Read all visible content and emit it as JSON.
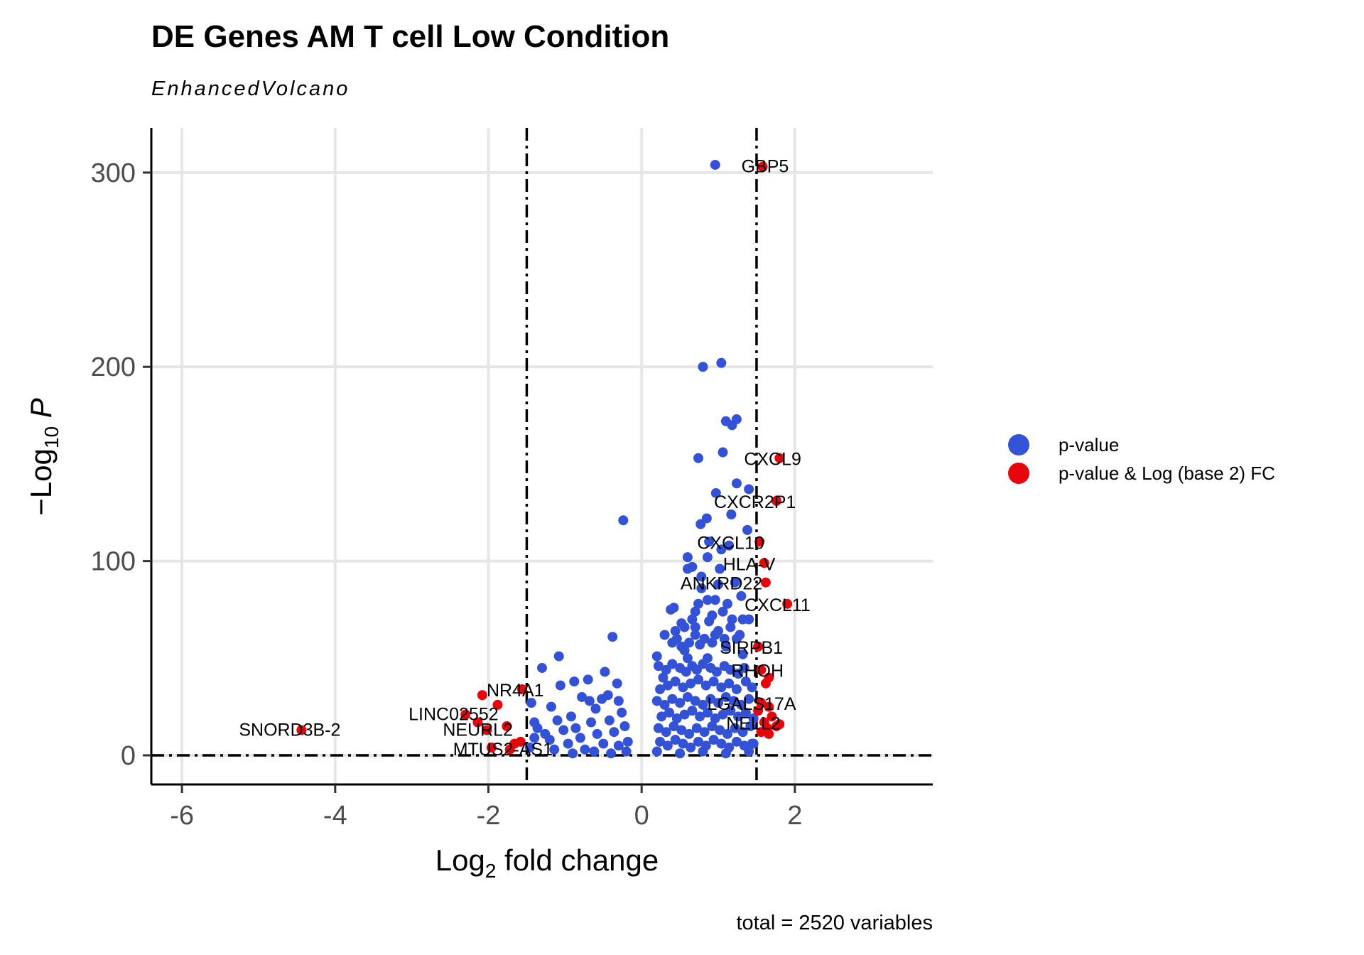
{
  "title": "DE Genes AM T cell Low Condition",
  "subtitle": "EnhancedVolcano",
  "caption": "total = 2520 variables",
  "colors": {
    "pvalue": "#3452d6",
    "pvalue_fc": "#e8060c",
    "grid": "#e6e6e6"
  },
  "chart_data": {
    "type": "scatter",
    "title": "DE Genes AM T cell Low Condition",
    "subtitle": "EnhancedVolcano",
    "xlabel": {
      "main": "Log",
      "sub": "2",
      "rest": " fold change"
    },
    "ylabel": {
      "pre": "−Log",
      "sub": "10",
      "italic": " P"
    },
    "xlim": [
      -6.4,
      3.8
    ],
    "ylim": [
      -15,
      323
    ],
    "xticks": [
      -6,
      -4,
      -2,
      0,
      2
    ],
    "yticks": [
      0,
      100,
      200,
      300
    ],
    "grid": true,
    "fc_cutoff": [
      -1.5,
      1.5
    ],
    "p_cutoff_line": 0,
    "legend_position": "right",
    "legend": [
      {
        "name": "p-value",
        "color": "#3452d6"
      },
      {
        "name": "p-value & Log (base 2) FC",
        "color": "#e8060c"
      }
    ],
    "series": [
      {
        "name": "p-value",
        "color": "#3452d6",
        "points": [
          [
            0.96,
            304
          ],
          [
            1.04,
            202
          ],
          [
            0.8,
            200
          ],
          [
            1.1,
            172
          ],
          [
            1.24,
            173
          ],
          [
            1.18,
            170
          ],
          [
            0.74,
            153
          ],
          [
            1.06,
            156
          ],
          [
            1.24,
            140
          ],
          [
            1.4,
            137
          ],
          [
            0.97,
            135
          ],
          [
            1.17,
            124
          ],
          [
            0.85,
            122
          ],
          [
            0.77,
            119
          ],
          [
            1.38,
            116
          ],
          [
            -0.24,
            121
          ],
          [
            0.88,
            110
          ],
          [
            1.14,
            108
          ],
          [
            1.04,
            106
          ],
          [
            0.86,
            102
          ],
          [
            0.6,
            102
          ],
          [
            0.66,
            97
          ],
          [
            0.6,
            96
          ],
          [
            1.02,
            96
          ],
          [
            0.78,
            92
          ],
          [
            1.22,
            89
          ],
          [
            1.0,
            88
          ],
          [
            0.78,
            86
          ],
          [
            1.3,
            82
          ],
          [
            0.86,
            80
          ],
          [
            0.96,
            80
          ],
          [
            0.74,
            78
          ],
          [
            1.12,
            78
          ],
          [
            0.42,
            76
          ],
          [
            0.38,
            75
          ],
          [
            0.7,
            74
          ],
          [
            1.18,
            70
          ],
          [
            0.56,
            66
          ],
          [
            1.32,
            70
          ],
          [
            1.4,
            70
          ],
          [
            0.88,
            69
          ],
          [
            0.44,
            64
          ],
          [
            0.3,
            62
          ],
          [
            0.96,
            62
          ],
          [
            1.24,
            60
          ],
          [
            -0.38,
            61
          ],
          [
            0.76,
            57
          ],
          [
            1.1,
            56
          ],
          [
            0.4,
            58
          ],
          [
            0.56,
            54
          ],
          [
            0.2,
            51
          ],
          [
            0.6,
            50
          ],
          [
            0.86,
            50
          ],
          [
            1.32,
            52
          ],
          [
            -1.08,
            51
          ],
          [
            -1.3,
            45
          ],
          [
            -0.48,
            43
          ],
          [
            -0.7,
            39
          ],
          [
            -0.32,
            37
          ],
          [
            -0.88,
            38
          ],
          [
            -1.06,
            36
          ],
          [
            -1.44,
            27
          ],
          [
            -1.4,
            17
          ],
          [
            -1.36,
            14
          ],
          [
            -1.26,
            11
          ],
          [
            -1.4,
            9
          ],
          [
            -1.2,
            8
          ],
          [
            -1.46,
            4
          ],
          [
            -1.1,
            18
          ],
          [
            -1.18,
            25
          ],
          [
            -0.78,
            30
          ],
          [
            -0.68,
            28
          ],
          [
            -0.6,
            24
          ],
          [
            -0.52,
            29
          ],
          [
            -0.44,
            31
          ],
          [
            -0.3,
            28
          ],
          [
            -0.26,
            22
          ],
          [
            -0.22,
            15
          ],
          [
            -0.18,
            7
          ],
          [
            -0.2,
            2
          ],
          [
            -0.92,
            20
          ],
          [
            -0.86,
            14
          ],
          [
            -0.8,
            9
          ],
          [
            -0.74,
            3
          ],
          [
            -0.66,
            17
          ],
          [
            -0.58,
            11
          ],
          [
            -0.5,
            6
          ],
          [
            -0.42,
            18
          ],
          [
            -0.36,
            12
          ],
          [
            -0.3,
            5
          ],
          [
            -1.02,
            13
          ],
          [
            -0.96,
            6
          ],
          [
            -1.14,
            3
          ],
          [
            -0.62,
            2
          ],
          [
            -0.4,
            1
          ],
          [
            -0.9,
            1
          ],
          [
            0.22,
            46
          ],
          [
            0.28,
            40
          ],
          [
            0.32,
            44
          ],
          [
            0.4,
            47
          ],
          [
            0.5,
            45
          ],
          [
            0.58,
            43
          ],
          [
            0.66,
            46
          ],
          [
            0.72,
            44
          ],
          [
            0.8,
            47
          ],
          [
            0.9,
            45
          ],
          [
            0.98,
            43
          ],
          [
            1.08,
            46
          ],
          [
            1.16,
            44
          ],
          [
            1.26,
            42
          ],
          [
            1.34,
            45
          ],
          [
            0.24,
            34
          ],
          [
            0.34,
            36
          ],
          [
            0.44,
            38
          ],
          [
            0.54,
            35
          ],
          [
            0.64,
            37
          ],
          [
            0.74,
            39
          ],
          [
            0.84,
            36
          ],
          [
            0.94,
            38
          ],
          [
            1.04,
            35
          ],
          [
            1.14,
            37
          ],
          [
            1.24,
            34
          ],
          [
            1.36,
            38
          ],
          [
            1.44,
            35
          ],
          [
            0.2,
            28
          ],
          [
            0.3,
            26
          ],
          [
            0.4,
            29
          ],
          [
            0.5,
            27
          ],
          [
            0.6,
            30
          ],
          [
            0.7,
            28
          ],
          [
            0.8,
            26
          ],
          [
            0.9,
            29
          ],
          [
            1.0,
            27
          ],
          [
            1.1,
            30
          ],
          [
            1.2,
            28
          ],
          [
            1.3,
            26
          ],
          [
            1.4,
            29
          ],
          [
            0.26,
            20
          ],
          [
            0.36,
            22
          ],
          [
            0.46,
            19
          ],
          [
            0.56,
            21
          ],
          [
            0.66,
            23
          ],
          [
            0.76,
            20
          ],
          [
            0.86,
            22
          ],
          [
            0.96,
            19
          ],
          [
            1.06,
            21
          ],
          [
            1.16,
            23
          ],
          [
            1.26,
            20
          ],
          [
            1.36,
            22
          ],
          [
            1.46,
            19
          ],
          [
            0.22,
            14
          ],
          [
            0.32,
            12
          ],
          [
            0.42,
            15
          ],
          [
            0.52,
            13
          ],
          [
            0.62,
            11
          ],
          [
            0.72,
            14
          ],
          [
            0.82,
            12
          ],
          [
            0.92,
            15
          ],
          [
            1.02,
            13
          ],
          [
            1.12,
            11
          ],
          [
            1.22,
            14
          ],
          [
            1.32,
            12
          ],
          [
            1.42,
            15
          ],
          [
            0.24,
            7
          ],
          [
            0.34,
            5
          ],
          [
            0.44,
            8
          ],
          [
            0.54,
            6
          ],
          [
            0.64,
            4
          ],
          [
            0.74,
            7
          ],
          [
            0.84,
            5
          ],
          [
            0.94,
            8
          ],
          [
            1.04,
            6
          ],
          [
            1.14,
            4
          ],
          [
            1.24,
            7
          ],
          [
            1.34,
            5
          ],
          [
            1.44,
            6
          ],
          [
            0.2,
            2
          ],
          [
            0.5,
            1
          ],
          [
            0.8,
            2
          ],
          [
            1.1,
            1
          ],
          [
            1.4,
            2
          ],
          [
            0.46,
            60
          ],
          [
            0.52,
            56
          ],
          [
            0.62,
            58
          ],
          [
            0.7,
            62
          ],
          [
            0.82,
            60
          ],
          [
            0.92,
            58
          ],
          [
            1.0,
            64
          ],
          [
            1.08,
            60
          ],
          [
            1.16,
            66
          ],
          [
            1.28,
            62
          ],
          [
            0.7,
            66
          ],
          [
            0.92,
            72
          ],
          [
            1.06,
            74
          ],
          [
            0.66,
            70
          ],
          [
            0.52,
            68
          ],
          [
            1.46,
            6
          ]
        ]
      },
      {
        "name": "p-value & Log (base 2) FC",
        "color": "#e8060c",
        "points": [
          [
            1.58,
            303
          ],
          [
            1.8,
            153
          ],
          [
            1.76,
            131
          ],
          [
            1.54,
            110
          ],
          [
            1.6,
            99
          ],
          [
            1.62,
            89
          ],
          [
            1.9,
            78
          ],
          [
            1.52,
            56
          ],
          [
            1.56,
            44
          ],
          [
            1.66,
            40
          ],
          [
            1.62,
            37
          ],
          [
            1.56,
            27
          ],
          [
            1.66,
            25
          ],
          [
            1.52,
            23
          ],
          [
            1.7,
            20
          ],
          [
            1.6,
            17
          ],
          [
            1.76,
            15
          ],
          [
            1.8,
            16
          ],
          [
            1.64,
            14
          ],
          [
            1.56,
            12
          ],
          [
            1.66,
            11
          ],
          [
            -1.56,
            34
          ],
          [
            -2.08,
            31
          ],
          [
            -1.88,
            26
          ],
          [
            -2.3,
            21
          ],
          [
            -2.14,
            17
          ],
          [
            -2.02,
            13
          ],
          [
            -1.76,
            15
          ],
          [
            -1.66,
            6
          ],
          [
            -1.72,
            3
          ],
          [
            -1.96,
            4
          ],
          [
            -1.58,
            7
          ],
          [
            -4.44,
            13
          ]
        ]
      }
    ],
    "labels": [
      {
        "text": "GBP5",
        "x": 1.58,
        "y": 303,
        "dx": -30,
        "dy": 8,
        "anchor": "start"
      },
      {
        "text": "CXCL9",
        "x": 1.8,
        "y": 153,
        "dx": -50,
        "dy": 10,
        "anchor": "start"
      },
      {
        "text": "CXCR2P1",
        "x": 1.76,
        "y": 131,
        "dx": -88,
        "dy": 10,
        "anchor": "start"
      },
      {
        "text": "CXCL10",
        "x": 1.54,
        "y": 110,
        "dx": -88,
        "dy": 10,
        "anchor": "start"
      },
      {
        "text": "HLA-V",
        "x": 1.6,
        "y": 99,
        "dx": -58,
        "dy": 10,
        "anchor": "start"
      },
      {
        "text": "ANKRD22",
        "x": 1.62,
        "y": 89,
        "dx": -120,
        "dy": 10,
        "anchor": "start"
      },
      {
        "text": "CXCL11",
        "x": 1.9,
        "y": 78,
        "dx": -60,
        "dy": 10,
        "anchor": "start"
      },
      {
        "text": "SIRPB1",
        "x": 1.52,
        "y": 56,
        "dx": -54,
        "dy": 10,
        "anchor": "start"
      },
      {
        "text": "RHOH",
        "x": 1.56,
        "y": 44,
        "dx": -42,
        "dy": 10,
        "anchor": "start"
      },
      {
        "text": "LGALS17A",
        "x": 1.56,
        "y": 27,
        "dx": -76,
        "dy": 10,
        "anchor": "start"
      },
      {
        "text": "NELL2",
        "x": 1.66,
        "y": 17,
        "dx": -60,
        "dy": 10,
        "anchor": "start"
      },
      {
        "text": "NR4A1",
        "x": -1.56,
        "y": 34,
        "dx": -50,
        "dy": 10,
        "anchor": "start"
      },
      {
        "text": "LINC02552",
        "x": -2.3,
        "y": 21,
        "dx": -80,
        "dy": 8,
        "anchor": "start"
      },
      {
        "text": "NEURL2",
        "x": -2.02,
        "y": 13,
        "dx": -62,
        "dy": 8,
        "anchor": "start"
      },
      {
        "text": "MTUS2-AS1",
        "x": -1.72,
        "y": 3,
        "dx": -80,
        "dy": 8,
        "anchor": "start"
      },
      {
        "text": "SNORD3B-2",
        "x": -4.44,
        "y": 13,
        "dx": -88,
        "dy": 8,
        "anchor": "start"
      }
    ]
  }
}
